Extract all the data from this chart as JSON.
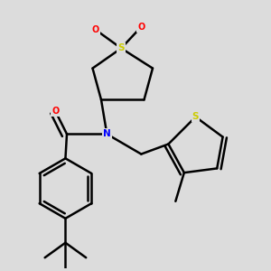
{
  "bg_color": "#dcdcdc",
  "atom_colors": {
    "S": "#cccc00",
    "N": "#0000ff",
    "O": "#ff0000",
    "C": "#000000"
  },
  "bond_color": "#000000",
  "bond_width": 1.8,
  "font_size_atom": 7.5
}
